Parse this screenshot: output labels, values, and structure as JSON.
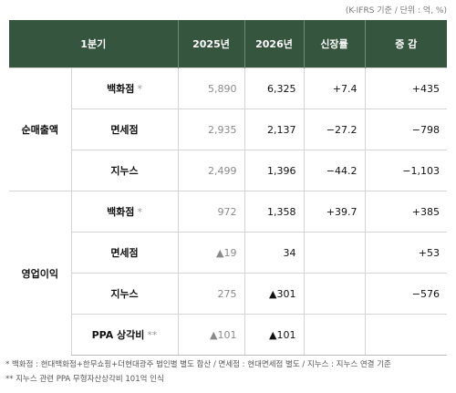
{
  "unit_note": "(K-IFRS 기준 / 단위 : 억, %)",
  "table": {
    "header": [
      "1분기",
      "2025년",
      "2026년",
      "신장률",
      "증 감"
    ],
    "groups": [
      {
        "label": "순매출액",
        "rows": [
          {
            "item": "백화점",
            "mark": "*",
            "y2025": "5,890",
            "y2026": "6,325",
            "growth": "+7.4",
            "change": "+435"
          },
          {
            "item": "면세점",
            "y2025": "2,935",
            "y2026": "2,137",
            "growth": "−27.2",
            "change": "−798"
          },
          {
            "item": "지누스",
            "y2025": "2,499",
            "y2026": "1,396",
            "growth": "−44.2",
            "change": "−1,103"
          }
        ]
      },
      {
        "label": "영업이익",
        "rows": [
          {
            "item": "백화점",
            "mark": "*",
            "y2025": "972",
            "y2026": "1,358",
            "growth": "+39.7",
            "change": "+385"
          },
          {
            "item": "면세점",
            "y2025": "▲19",
            "y2026": "34",
            "change": "+53"
          },
          {
            "item": "지누스",
            "y2025": "275",
            "y2026": "▲301",
            "change": "−576"
          },
          {
            "item": "PPA 상각비",
            "mark": "**",
            "y2025": "▲101",
            "y2026": "▲101"
          }
        ]
      }
    ]
  },
  "footnotes": [
    "* 백화점 : 현대백화점+한무쇼핑+더현대광주 법인별 별도 합산 / 면세점 : 현대면세점 별도 / 지누스 : 지누스 연결 기준",
    "** 지누스 관련 PPA 무형자산상각비 101억 인식"
  ]
}
